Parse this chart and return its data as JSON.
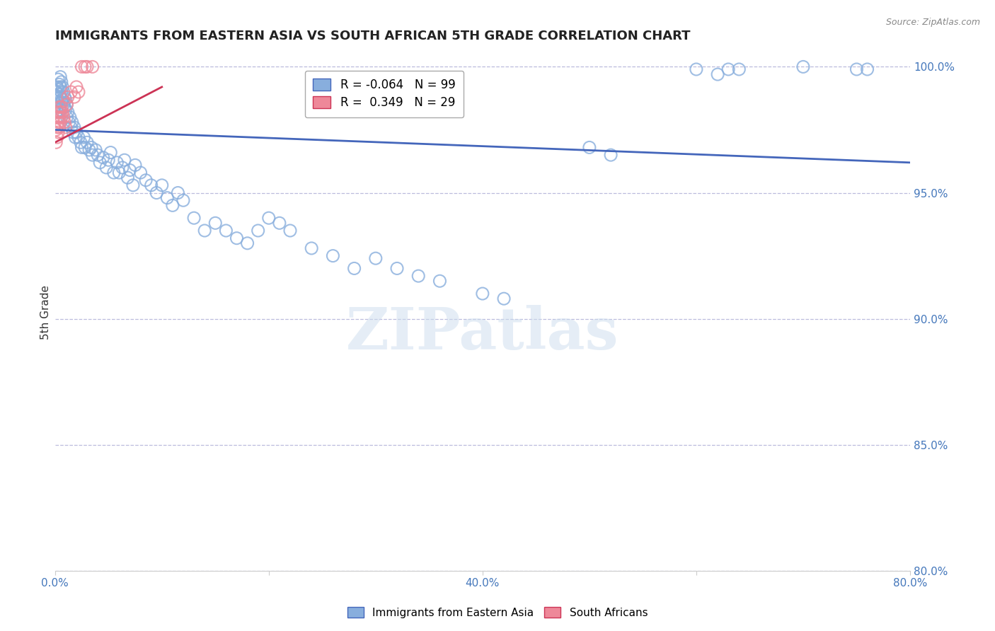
{
  "title": "IMMIGRANTS FROM EASTERN ASIA VS SOUTH AFRICAN 5TH GRADE CORRELATION CHART",
  "source": "Source: ZipAtlas.com",
  "ylabel": "5th Grade",
  "watermark": "ZIPatlas",
  "xlim": [
    0.0,
    0.8
  ],
  "ylim": [
    0.8,
    1.005
  ],
  "ytick_right": [
    0.8,
    0.85,
    0.9,
    0.95,
    1.0
  ],
  "ytick_right_labels": [
    "80.0%",
    "85.0%",
    "90.0%",
    "95.0%",
    "100.0%"
  ],
  "xtick_positions": [
    0.0,
    0.2,
    0.4,
    0.6,
    0.8
  ],
  "xtick_labels": [
    "0.0%",
    "",
    "40.0%",
    "",
    "80.0%"
  ],
  "blue_R": -0.064,
  "blue_N": 99,
  "pink_R": 0.349,
  "pink_N": 29,
  "blue_color": "#88AEDD",
  "pink_color": "#EE8899",
  "blue_line_color": "#4466BB",
  "pink_line_color": "#CC3355",
  "grid_color": "#BBBBDD",
  "title_color": "#222222",
  "axis_color": "#4477BB",
  "blue_trend_x": [
    0.0,
    0.8
  ],
  "blue_trend_y": [
    0.975,
    0.962
  ],
  "pink_trend_x": [
    0.0,
    0.1
  ],
  "pink_trend_y": [
    0.97,
    0.992
  ],
  "blue_x": [
    0.001,
    0.001,
    0.002,
    0.002,
    0.002,
    0.003,
    0.003,
    0.003,
    0.004,
    0.004,
    0.004,
    0.005,
    0.005,
    0.005,
    0.005,
    0.006,
    0.006,
    0.006,
    0.007,
    0.007,
    0.008,
    0.008,
    0.009,
    0.009,
    0.01,
    0.01,
    0.011,
    0.011,
    0.012,
    0.013,
    0.014,
    0.015,
    0.016,
    0.017,
    0.018,
    0.019,
    0.02,
    0.022,
    0.024,
    0.025,
    0.027,
    0.028,
    0.03,
    0.032,
    0.034,
    0.035,
    0.038,
    0.04,
    0.042,
    0.045,
    0.048,
    0.05,
    0.052,
    0.055,
    0.058,
    0.06,
    0.063,
    0.065,
    0.068,
    0.07,
    0.073,
    0.075,
    0.08,
    0.085,
    0.09,
    0.095,
    0.1,
    0.105,
    0.11,
    0.115,
    0.12,
    0.13,
    0.14,
    0.15,
    0.16,
    0.17,
    0.18,
    0.19,
    0.2,
    0.21,
    0.22,
    0.24,
    0.26,
    0.28,
    0.3,
    0.32,
    0.34,
    0.36,
    0.4,
    0.42,
    0.5,
    0.52,
    0.6,
    0.62,
    0.63,
    0.64,
    0.7,
    0.75,
    0.76
  ],
  "blue_y": [
    0.99,
    0.985,
    0.992,
    0.988,
    0.982,
    0.995,
    0.991,
    0.986,
    0.993,
    0.989,
    0.984,
    0.996,
    0.992,
    0.988,
    0.983,
    0.994,
    0.99,
    0.986,
    0.992,
    0.987,
    0.99,
    0.985,
    0.988,
    0.984,
    0.987,
    0.983,
    0.985,
    0.98,
    0.982,
    0.978,
    0.98,
    0.976,
    0.978,
    0.974,
    0.976,
    0.972,
    0.974,
    0.972,
    0.97,
    0.968,
    0.972,
    0.968,
    0.97,
    0.967,
    0.968,
    0.965,
    0.967,
    0.965,
    0.962,
    0.964,
    0.96,
    0.963,
    0.966,
    0.958,
    0.962,
    0.958,
    0.96,
    0.963,
    0.956,
    0.959,
    0.953,
    0.961,
    0.958,
    0.955,
    0.953,
    0.95,
    0.953,
    0.948,
    0.945,
    0.95,
    0.947,
    0.94,
    0.935,
    0.938,
    0.935,
    0.932,
    0.93,
    0.935,
    0.94,
    0.938,
    0.935,
    0.928,
    0.925,
    0.92,
    0.924,
    0.92,
    0.917,
    0.915,
    0.91,
    0.908,
    0.968,
    0.965,
    0.999,
    0.997,
    0.999,
    0.999,
    1.0,
    0.999,
    0.999
  ],
  "pink_x": [
    0.001,
    0.001,
    0.002,
    0.002,
    0.002,
    0.003,
    0.003,
    0.003,
    0.004,
    0.004,
    0.004,
    0.005,
    0.005,
    0.006,
    0.006,
    0.007,
    0.008,
    0.009,
    0.01,
    0.011,
    0.012,
    0.015,
    0.018,
    0.02,
    0.022,
    0.025,
    0.028,
    0.03,
    0.035
  ],
  "pink_y": [
    0.97,
    0.975,
    0.972,
    0.976,
    0.98,
    0.974,
    0.978,
    0.982,
    0.976,
    0.98,
    0.984,
    0.978,
    0.982,
    0.98,
    0.984,
    0.982,
    0.98,
    0.978,
    0.976,
    0.985,
    0.988,
    0.99,
    0.988,
    0.992,
    0.99,
    1.0,
    1.0,
    1.0,
    1.0
  ]
}
